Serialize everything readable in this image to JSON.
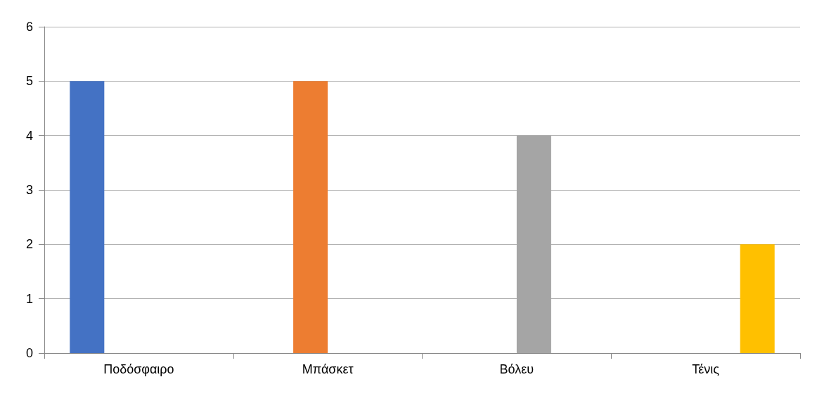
{
  "chart_data": {
    "type": "bar",
    "categories": [
      "Ποδόσφαιρο",
      "Μπάσκετ",
      "Βόλευ",
      "Τένις"
    ],
    "series": [
      {
        "color": "#4472c4",
        "values": [
          5,
          null,
          null,
          null
        ]
      },
      {
        "color": "#ed7d31",
        "values": [
          null,
          5,
          null,
          null
        ]
      },
      {
        "color": "#a5a5a5",
        "values": [
          null,
          null,
          4,
          null
        ]
      },
      {
        "color": "#ffc000",
        "values": [
          null,
          null,
          null,
          2
        ]
      }
    ],
    "ylim": [
      0,
      6
    ],
    "yticks": [
      0,
      1,
      2,
      3,
      4,
      5,
      6
    ],
    "grid": "y"
  }
}
